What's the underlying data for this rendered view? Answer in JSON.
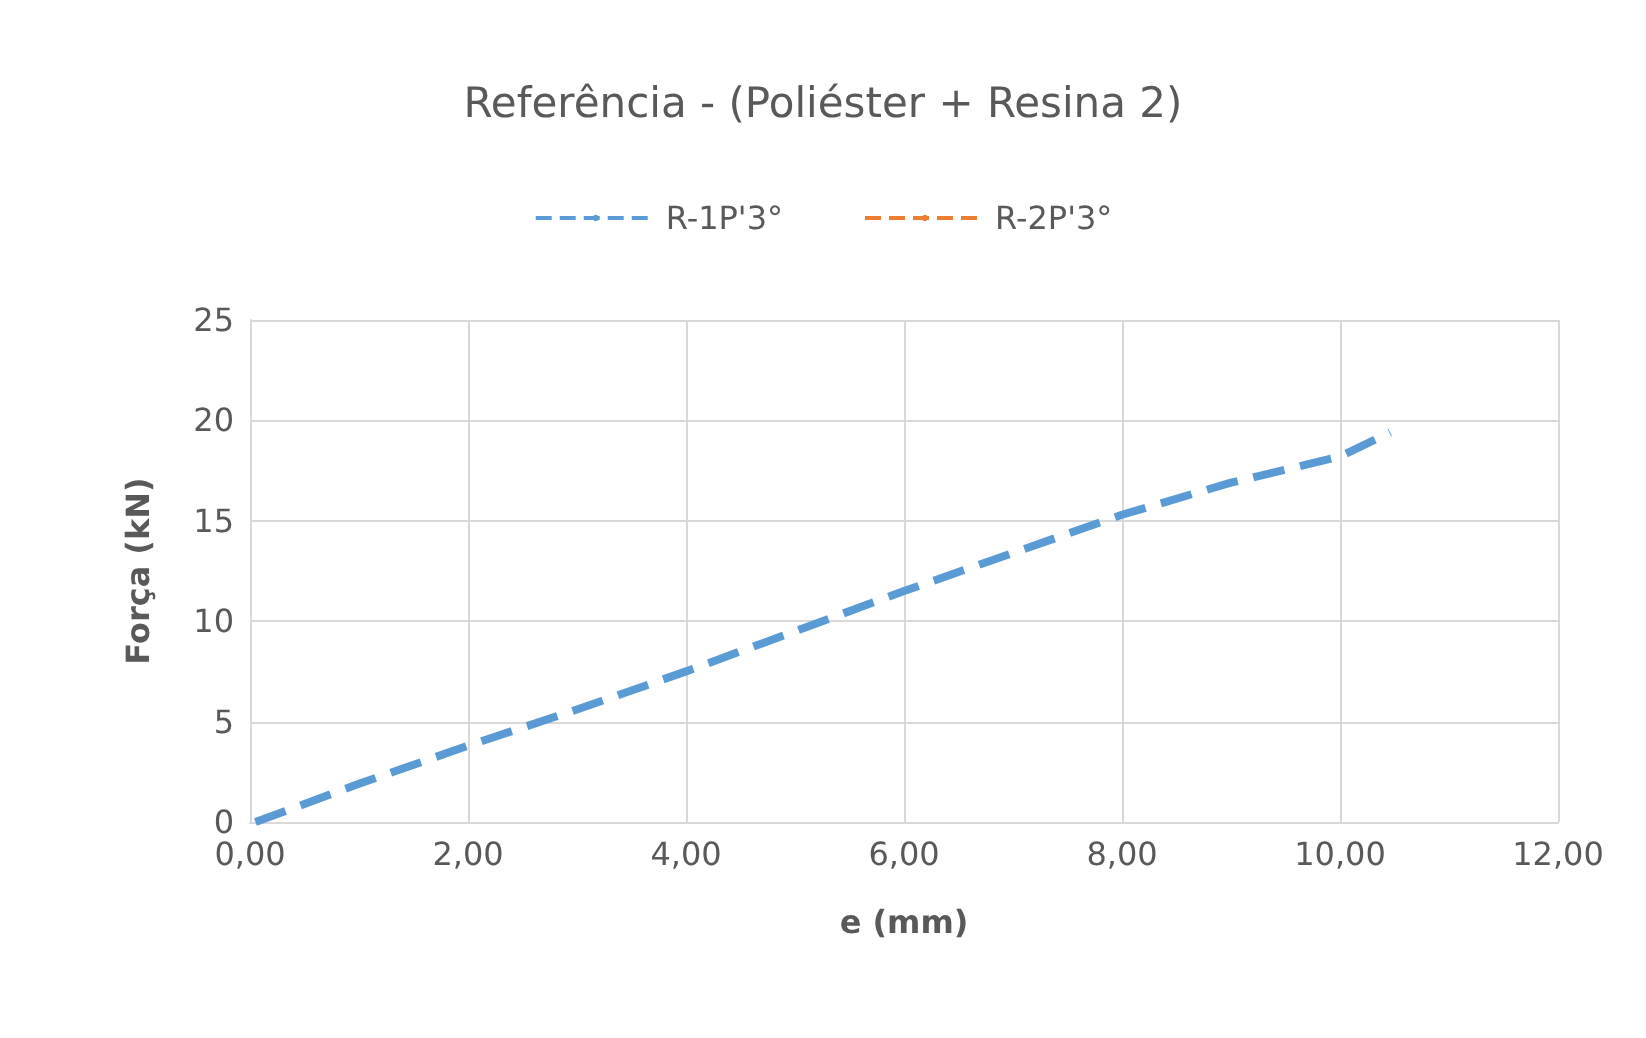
{
  "chart_data": {
    "type": "line",
    "title": "Referência - (Poliéster + Resina 2)",
    "xlabel": "e (mm)",
    "ylabel": "Força (kN)",
    "x": [
      0.05,
      1,
      2,
      3,
      4,
      5,
      6,
      7,
      8,
      9,
      10,
      10.46
    ],
    "series": [
      {
        "name": "R-1P'3°",
        "color": "#5b9bd5",
        "values": [
          0,
          1.9,
          3.8,
          5.6,
          7.5,
          9.5,
          11.5,
          13.4,
          15.3,
          16.9,
          18.2,
          19.4
        ]
      },
      {
        "name": "R-2P'3°",
        "color": "#ed7d31",
        "values": [
          null,
          null,
          null,
          null,
          null,
          null,
          null,
          null,
          null,
          null,
          null,
          null
        ]
      }
    ],
    "xlim": [
      0,
      12
    ],
    "xticks": [
      {
        "value": 0,
        "label": "0,00"
      },
      {
        "value": 2,
        "label": "2,00"
      },
      {
        "value": 4,
        "label": "4,00"
      },
      {
        "value": 6,
        "label": "6,00"
      },
      {
        "value": 8,
        "label": "8,00"
      },
      {
        "value": 10,
        "label": "10,00"
      },
      {
        "value": 12,
        "label": "12,00"
      }
    ],
    "ylim": [
      0,
      25
    ],
    "yticks": [
      0,
      5,
      10,
      15,
      20,
      25
    ],
    "grid": true,
    "legend": "top",
    "line_style": "dashed",
    "marker": "none"
  }
}
